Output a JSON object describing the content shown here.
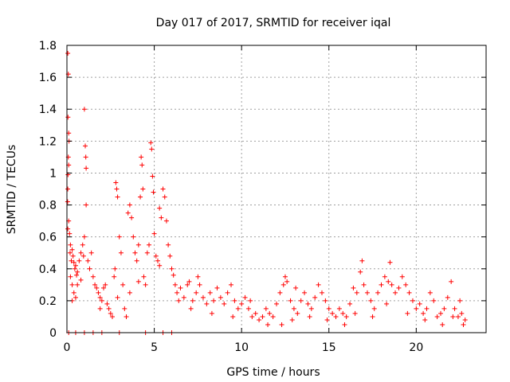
{
  "chart_data": {
    "type": "scatter",
    "title": "Day 017 of 2017, SRMTID for receiver iqal",
    "xlabel": "GPS time / hours",
    "ylabel": "SRMTID / TECUs",
    "xlim": [
      0,
      24
    ],
    "ylim": [
      0,
      1.8
    ],
    "xticks": [
      0,
      5,
      10,
      15,
      20
    ],
    "yticks": [
      0,
      0.2,
      0.4,
      0.6,
      0.8,
      1,
      1.2,
      1.4,
      1.6,
      1.8
    ],
    "xtick_labels": [
      "0",
      "5",
      "10",
      "15",
      "20"
    ],
    "ytick_labels": [
      "0",
      "0.2",
      "0.4",
      "0.6",
      "0.8",
      "1",
      "1.2",
      "1.4",
      "1.6",
      "1.8"
    ],
    "grid": true,
    "marker": "+",
    "color": "#ff0000",
    "series": [
      {
        "name": "SRMTID",
        "points": [
          [
            0.05,
            1.75
          ],
          [
            0.08,
            1.62
          ],
          [
            0.06,
            1.35
          ],
          [
            0.1,
            1.25
          ],
          [
            0.12,
            1.2
          ],
          [
            0.08,
            1.1
          ],
          [
            0.1,
            1.05
          ],
          [
            0.06,
            0.99
          ],
          [
            0.05,
            0.9
          ],
          [
            0.04,
            0.82
          ],
          [
            0.1,
            0.7
          ],
          [
            0.05,
            0.65
          ],
          [
            0.15,
            0.62
          ],
          [
            0.2,
            0.55
          ],
          [
            0.18,
            0.5
          ],
          [
            0.3,
            0.52
          ],
          [
            0.25,
            0.45
          ],
          [
            0.35,
            0.48
          ],
          [
            0.4,
            0.44
          ],
          [
            0.45,
            0.4
          ],
          [
            0.5,
            0.42
          ],
          [
            0.55,
            0.36
          ],
          [
            0.6,
            0.38
          ],
          [
            0.2,
            0.35
          ],
          [
            0.3,
            0.3
          ],
          [
            0.4,
            0.25
          ],
          [
            0.5,
            0.22
          ],
          [
            0.6,
            0.3
          ],
          [
            0.7,
            0.45
          ],
          [
            0.8,
            0.5
          ],
          [
            0.9,
            0.55
          ],
          [
            1.0,
            1.4
          ],
          [
            1.05,
            1.17
          ],
          [
            1.08,
            1.1
          ],
          [
            1.1,
            1.03
          ],
          [
            1.1,
            0.8
          ],
          [
            1.0,
            0.6
          ],
          [
            0.95,
            0.48
          ],
          [
            1.2,
            0.45
          ],
          [
            1.3,
            0.4
          ],
          [
            1.4,
            0.5
          ],
          [
            1.5,
            0.35
          ],
          [
            1.6,
            0.3
          ],
          [
            1.7,
            0.28
          ],
          [
            1.8,
            0.25
          ],
          [
            1.9,
            0.22
          ],
          [
            2.0,
            0.2
          ],
          [
            2.1,
            0.28
          ],
          [
            2.2,
            0.3
          ],
          [
            2.3,
            0.18
          ],
          [
            2.4,
            0.15
          ],
          [
            2.5,
            0.12
          ],
          [
            2.6,
            0.1
          ],
          [
            2.7,
            0.35
          ],
          [
            2.75,
            0.4
          ],
          [
            2.8,
            0.94
          ],
          [
            2.85,
            0.9
          ],
          [
            2.9,
            0.85
          ],
          [
            3.0,
            0.6
          ],
          [
            3.1,
            0.5
          ],
          [
            3.2,
            0.3
          ],
          [
            3.3,
            0.15
          ],
          [
            3.4,
            0.1
          ],
          [
            3.5,
            0.75
          ],
          [
            3.6,
            0.8
          ],
          [
            3.7,
            0.72
          ],
          [
            3.8,
            0.6
          ],
          [
            3.9,
            0.5
          ],
          [
            4.0,
            0.45
          ],
          [
            4.1,
            0.55
          ],
          [
            4.2,
            0.85
          ],
          [
            4.25,
            1.1
          ],
          [
            4.3,
            1.05
          ],
          [
            4.35,
            0.9
          ],
          [
            4.4,
            0.35
          ],
          [
            4.5,
            0.3
          ],
          [
            4.6,
            0.5
          ],
          [
            4.7,
            0.55
          ],
          [
            4.8,
            1.19
          ],
          [
            4.85,
            1.15
          ],
          [
            4.9,
            0.98
          ],
          [
            4.95,
            0.88
          ],
          [
            5.0,
            0.62
          ],
          [
            5.1,
            0.48
          ],
          [
            5.2,
            0.45
          ],
          [
            5.3,
            0.78
          ],
          [
            5.4,
            0.72
          ],
          [
            5.5,
            0.9
          ],
          [
            5.6,
            0.85
          ],
          [
            5.7,
            0.7
          ],
          [
            5.8,
            0.55
          ],
          [
            5.9,
            0.48
          ],
          [
            6.0,
            0.4
          ],
          [
            6.1,
            0.36
          ],
          [
            6.2,
            0.3
          ],
          [
            6.3,
            0.25
          ],
          [
            6.5,
            0.28
          ],
          [
            6.7,
            0.22
          ],
          [
            6.9,
            0.3
          ],
          [
            7.0,
            0.32
          ],
          [
            7.2,
            0.2
          ],
          [
            7.4,
            0.25
          ],
          [
            7.5,
            0.35
          ],
          [
            7.6,
            0.3
          ],
          [
            7.8,
            0.22
          ],
          [
            8.0,
            0.18
          ],
          [
            8.2,
            0.25
          ],
          [
            8.4,
            0.2
          ],
          [
            8.6,
            0.28
          ],
          [
            8.8,
            0.22
          ],
          [
            9.0,
            0.18
          ],
          [
            9.2,
            0.25
          ],
          [
            9.4,
            0.3
          ],
          [
            9.6,
            0.2
          ],
          [
            9.8,
            0.15
          ],
          [
            10.0,
            0.18
          ],
          [
            10.2,
            0.22
          ],
          [
            10.4,
            0.15
          ],
          [
            10.6,
            0.1
          ],
          [
            10.8,
            0.12
          ],
          [
            11.0,
            0.08
          ],
          [
            11.2,
            0.1
          ],
          [
            11.4,
            0.15
          ],
          [
            11.6,
            0.12
          ],
          [
            11.8,
            0.1
          ],
          [
            12.0,
            0.18
          ],
          [
            12.2,
            0.25
          ],
          [
            12.4,
            0.3
          ],
          [
            12.5,
            0.35
          ],
          [
            12.6,
            0.32
          ],
          [
            12.8,
            0.2
          ],
          [
            13.0,
            0.15
          ],
          [
            13.2,
            0.12
          ],
          [
            13.4,
            0.2
          ],
          [
            13.6,
            0.25
          ],
          [
            13.8,
            0.18
          ],
          [
            14.0,
            0.15
          ],
          [
            14.2,
            0.22
          ],
          [
            14.4,
            0.3
          ],
          [
            14.6,
            0.25
          ],
          [
            14.8,
            0.2
          ],
          [
            15.0,
            0.15
          ],
          [
            15.2,
            0.12
          ],
          [
            15.4,
            0.1
          ],
          [
            15.6,
            0.15
          ],
          [
            15.8,
            0.12
          ],
          [
            16.0,
            0.1
          ],
          [
            16.2,
            0.18
          ],
          [
            16.4,
            0.28
          ],
          [
            16.6,
            0.25
          ],
          [
            16.8,
            0.38
          ],
          [
            16.9,
            0.45
          ],
          [
            17.0,
            0.3
          ],
          [
            17.2,
            0.25
          ],
          [
            17.4,
            0.2
          ],
          [
            17.6,
            0.15
          ],
          [
            17.8,
            0.25
          ],
          [
            18.0,
            0.3
          ],
          [
            18.2,
            0.35
          ],
          [
            18.4,
            0.32
          ],
          [
            18.5,
            0.44
          ],
          [
            18.6,
            0.3
          ],
          [
            18.8,
            0.25
          ],
          [
            19.0,
            0.28
          ],
          [
            19.2,
            0.35
          ],
          [
            19.4,
            0.3
          ],
          [
            19.6,
            0.25
          ],
          [
            19.8,
            0.2
          ],
          [
            20.0,
            0.15
          ],
          [
            20.2,
            0.18
          ],
          [
            20.4,
            0.12
          ],
          [
            20.6,
            0.15
          ],
          [
            20.8,
            0.25
          ],
          [
            21.0,
            0.2
          ],
          [
            21.2,
            0.1
          ],
          [
            21.4,
            0.12
          ],
          [
            21.6,
            0.15
          ],
          [
            21.8,
            0.22
          ],
          [
            22.0,
            0.32
          ],
          [
            22.2,
            0.15
          ],
          [
            22.4,
            0.1
          ],
          [
            22.6,
            0.12
          ],
          [
            22.8,
            0.08
          ],
          [
            22.7,
            0.05
          ],
          [
            22.5,
            0.2
          ],
          [
            0.1,
            0.0
          ],
          [
            0.5,
            0.0
          ],
          [
            1.5,
            0.0
          ],
          [
            2.0,
            0.0
          ],
          [
            4.5,
            0.0
          ],
          [
            5.5,
            0.0
          ],
          [
            6.0,
            0.0
          ],
          [
            3.0,
            0.0
          ],
          [
            1.0,
            0.0
          ],
          [
            0.3,
            0.2
          ],
          [
            0.8,
            0.33
          ],
          [
            1.9,
            0.15
          ],
          [
            2.9,
            0.22
          ],
          [
            3.6,
            0.25
          ],
          [
            4.1,
            0.32
          ],
          [
            5.3,
            0.42
          ],
          [
            6.4,
            0.2
          ],
          [
            7.1,
            0.15
          ],
          [
            8.3,
            0.12
          ],
          [
            9.5,
            0.1
          ],
          [
            10.5,
            0.2
          ],
          [
            11.5,
            0.05
          ],
          [
            12.9,
            0.08
          ],
          [
            13.9,
            0.1
          ],
          [
            14.9,
            0.08
          ],
          [
            15.9,
            0.05
          ],
          [
            16.5,
            0.12
          ],
          [
            17.5,
            0.1
          ],
          [
            18.3,
            0.18
          ],
          [
            19.5,
            0.12
          ],
          [
            20.5,
            0.08
          ],
          [
            21.5,
            0.05
          ],
          [
            22.1,
            0.1
          ],
          [
            12.3,
            0.05
          ],
          [
            13.1,
            0.28
          ]
        ]
      }
    ]
  }
}
